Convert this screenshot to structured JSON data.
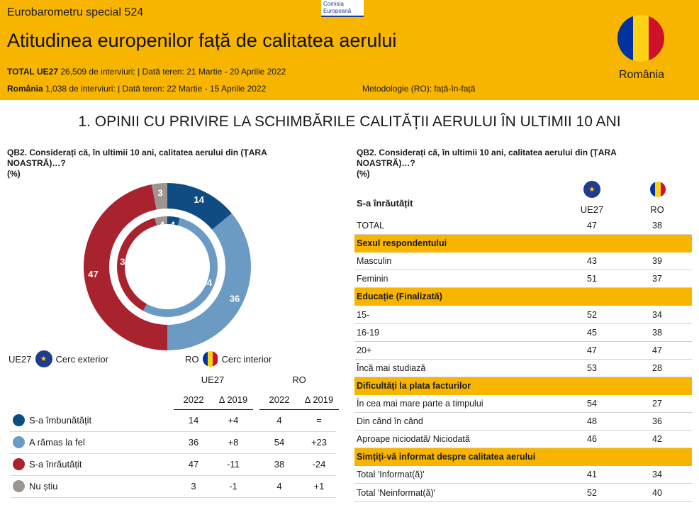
{
  "header": {
    "series": "Eurobarometru special 524",
    "title": "Atitudinea europenilor față de calitatea aerului",
    "eu_label": "TOTAL UE27",
    "eu_info": " 26,509 de interviuri:  |  Dată teren: 21 Martie - 20 Aprilie 2022",
    "ro_label": "România",
    "ro_info": " 1,038 de interviuri:  |  Dată teren: 22 Martie - 15 Aprilie 2022",
    "methodology": "Metodologie (RO): față-în-față",
    "logo_line1": "Comisia",
    "logo_line2": "Europeană",
    "country": "România"
  },
  "section_title": "1. OPINII CU PRIVIRE LA SCHIMBĂRILE CALITĂȚII AERULUI ÎN ULTIMII 10 ANI",
  "left_question": {
    "line1": "QB2. Considerați că, în ultimii 10 ani, calitatea aerului din (ȚARA",
    "line2": "NOASTRĂ)…?",
    "line3": "(%)"
  },
  "right_question": {
    "line1": "QB2. Considerați că, în ultimii 10 ani, calitatea aerului din (ȚARA",
    "line2": "NOASTRĂ)…?",
    "line3": "(%)"
  },
  "ring_legend": {
    "eu_code": "UE27",
    "eu_text": "Cerc exterior",
    "ro_code": "RO",
    "ro_text": "Cerc interior"
  },
  "colors": {
    "improved": "#0f4c81",
    "same": "#6b9bc3",
    "worse": "#a8232d",
    "dontknow": "#9e9592",
    "accent": "#f7b500"
  },
  "chart_data": {
    "type": "pie",
    "categories": [
      "S-a îmbunătățit",
      "A rămas la fel",
      "S-a înrăutățit",
      "Nu știu"
    ],
    "series": [
      {
        "name": "UE27",
        "values": [
          14,
          36,
          47,
          3
        ]
      },
      {
        "name": "RO",
        "values": [
          4,
          54,
          38,
          4
        ]
      }
    ]
  },
  "left_table": {
    "group1": "UE27",
    "group2": "RO",
    "col_year": "2022",
    "col_delta": "Δ 2019",
    "rows": [
      {
        "label": "S-a îmbunătățit",
        "eu": "14",
        "eu_d": "+4",
        "ro": "4",
        "ro_d": "="
      },
      {
        "label": "A rămas la fel",
        "eu": "36",
        "eu_d": "+8",
        "ro": "54",
        "ro_d": "+23"
      },
      {
        "label": "S-a înrăutățit",
        "eu": "47",
        "eu_d": "-11",
        "ro": "38",
        "ro_d": "-24"
      },
      {
        "label": "Nu știu",
        "eu": "3",
        "eu_d": "-1",
        "ro": "4",
        "ro_d": "+1"
      }
    ]
  },
  "right_table": {
    "title": "S-a înrăutățit",
    "col1": "UE27",
    "col2": "RO",
    "rows": [
      {
        "label": "TOTAL",
        "v1": "47",
        "v2": "38"
      },
      {
        "label": "Sexul respondentului",
        "cat": true
      },
      {
        "label": "Masculin",
        "v1": "43",
        "v2": "39"
      },
      {
        "label": "Feminin",
        "v1": "51",
        "v2": "37"
      },
      {
        "label": "Educație (Finalizată)",
        "cat": true
      },
      {
        "label": "15-",
        "v1": "52",
        "v2": "34"
      },
      {
        "label": "16-19",
        "v1": "45",
        "v2": "38"
      },
      {
        "label": "20+",
        "v1": "47",
        "v2": "47"
      },
      {
        "label": "Încă mai studiază",
        "v1": "53",
        "v2": "28"
      },
      {
        "label": "Dificultăți la plata facturilor",
        "cat": true
      },
      {
        "label": "În cea mai mare parte a timpului",
        "v1": "54",
        "v2": "27"
      },
      {
        "label": "Din când în când",
        "v1": "48",
        "v2": "36"
      },
      {
        "label": "Aproape niciodată/ Niciodată",
        "v1": "46",
        "v2": "42"
      },
      {
        "label": "Simțiți-vă informat despre calitatea aerului",
        "cat": true
      },
      {
        "label": "Total 'Informat(ă)'",
        "v1": "41",
        "v2": "34"
      },
      {
        "label": "Total 'Neinformat(ă)'",
        "v1": "52",
        "v2": "40"
      }
    ]
  }
}
